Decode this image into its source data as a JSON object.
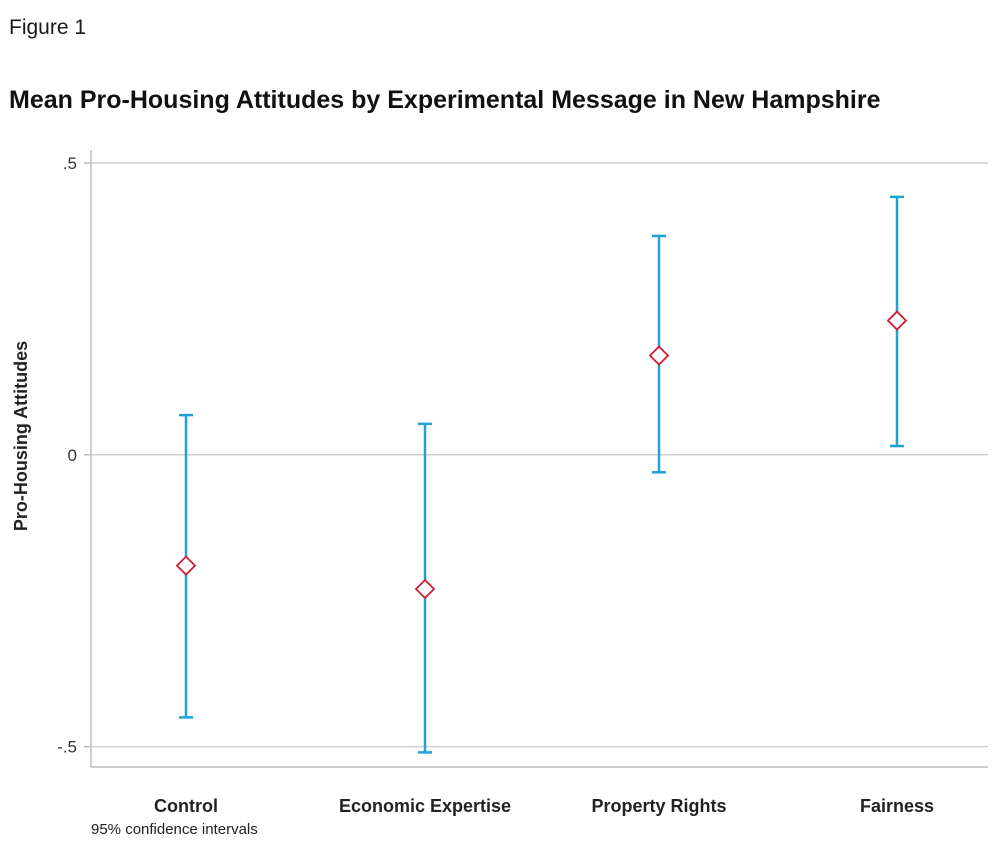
{
  "figure_label": "Figure 1",
  "note": "95% confidence intervals",
  "chart_data": {
    "type": "errorbar",
    "title": "Mean Pro-Housing Attitudes by Experimental Message in New Hampshire",
    "xlabel": "",
    "ylabel": "Pro-Housing Attitudes",
    "ylim": [
      -0.535,
      0.5
    ],
    "yticks": [
      0.5,
      0,
      -0.5
    ],
    "ytick_labels": [
      ".5",
      "0",
      "-.5"
    ],
    "grid": true,
    "categories": [
      "Control",
      "Economic Expertise",
      "Property Rights",
      "Fairness"
    ],
    "series": [
      {
        "mean": [
          -0.19,
          -0.23,
          0.17,
          0.23
        ],
        "lower": [
          -0.45,
          -0.51,
          -0.03,
          0.015
        ],
        "upper": [
          0.068,
          0.053,
          0.375,
          0.442
        ]
      }
    ],
    "colors": {
      "ci": "#1fa2d6",
      "marker": "#cc1f36",
      "grid": "#cfcfcf",
      "axis": "#bdbdbd"
    }
  }
}
